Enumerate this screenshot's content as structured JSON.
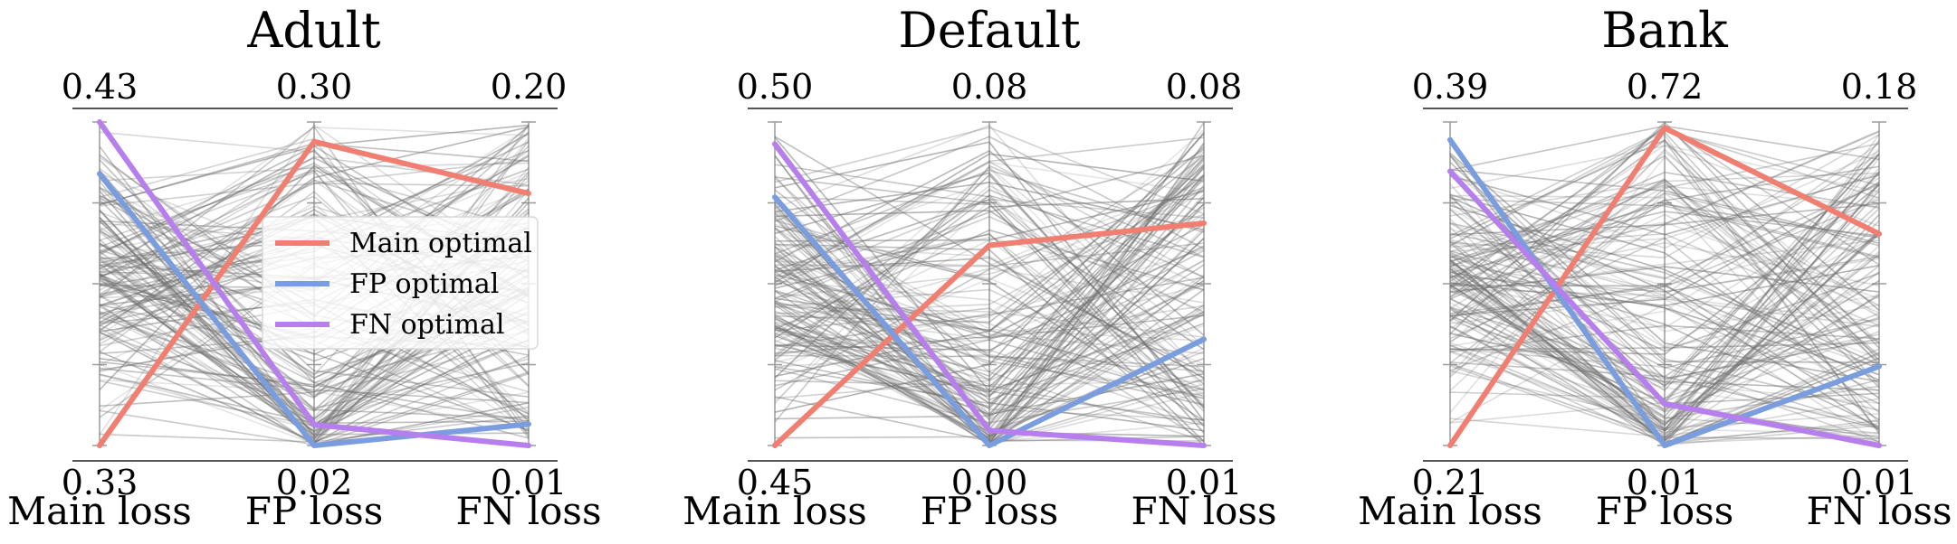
{
  "chart_data": [
    {
      "type": "parallel-coordinates",
      "title": "Adult",
      "axes": [
        {
          "name": "Main loss",
          "top": "0.43",
          "bottom": "0.33",
          "min": 0.33,
          "max": 0.43
        },
        {
          "name": "FP loss",
          "top": "0.30",
          "bottom": "0.02",
          "min": 0.02,
          "max": 0.3
        },
        {
          "name": "FN loss",
          "top": "0.20",
          "bottom": "0.01",
          "min": 0.01,
          "max": 0.2
        }
      ],
      "highlighted": [
        {
          "name": "Main optimal",
          "color": "#F07F72",
          "values": [
            0.33,
            0.283,
            0.158
          ]
        },
        {
          "name": "FP optimal",
          "color": "#7A9DE0",
          "values": [
            0.414,
            0.02,
            0.0225
          ]
        },
        {
          "name": "FN optimal",
          "color": "#B77EED",
          "values": [
            0.43,
            0.038,
            0.01
          ]
        }
      ],
      "background_seed": 11,
      "background_count": 150
    },
    {
      "type": "parallel-coordinates",
      "title": "Default",
      "axes": [
        {
          "name": "Main loss",
          "top": "0.50",
          "bottom": "0.45",
          "min": 0.45,
          "max": 0.5
        },
        {
          "name": "FP loss",
          "top": "0.08",
          "bottom": "0.00",
          "min": 0.0,
          "max": 0.08
        },
        {
          "name": "FN loss",
          "top": "0.08",
          "bottom": "0.01",
          "min": 0.01,
          "max": 0.08
        }
      ],
      "highlighted": [
        {
          "name": "Main optimal",
          "color": "#F07F72",
          "values": [
            0.45,
            0.0495,
            0.0581
          ]
        },
        {
          "name": "FP optimal",
          "color": "#7A9DE0",
          "values": [
            0.4884,
            0.0,
            0.033
          ]
        },
        {
          "name": "FN optimal",
          "color": "#B77EED",
          "values": [
            0.4966,
            0.0037,
            0.01
          ]
        }
      ],
      "background_seed": 23,
      "background_count": 150
    },
    {
      "type": "parallel-coordinates",
      "title": "Bank",
      "axes": [
        {
          "name": "Main loss",
          "top": "0.39",
          "bottom": "0.21",
          "min": 0.21,
          "max": 0.39
        },
        {
          "name": "FP loss",
          "top": "0.72",
          "bottom": "0.01",
          "min": 0.01,
          "max": 0.72
        },
        {
          "name": "FN loss",
          "top": "0.18",
          "bottom": "0.01",
          "min": 0.01,
          "max": 0.18
        }
      ],
      "highlighted": [
        {
          "name": "Main optimal",
          "color": "#F07F72",
          "values": [
            0.21,
            0.707,
            0.1212
          ]
        },
        {
          "name": "FP optimal",
          "color": "#7A9DE0",
          "values": [
            0.3801,
            0.01,
            0.0516
          ]
        },
        {
          "name": "FN optimal",
          "color": "#B77EED",
          "values": [
            0.3626,
            0.1016,
            0.01
          ]
        }
      ],
      "background_seed": 37,
      "background_count": 150
    }
  ],
  "legend": {
    "items": [
      {
        "label": "Main optimal",
        "color": "#F07F72"
      },
      {
        "label": "FP optimal",
        "color": "#7A9DE0"
      },
      {
        "label": "FN optimal",
        "color": "#B77EED"
      }
    ]
  }
}
